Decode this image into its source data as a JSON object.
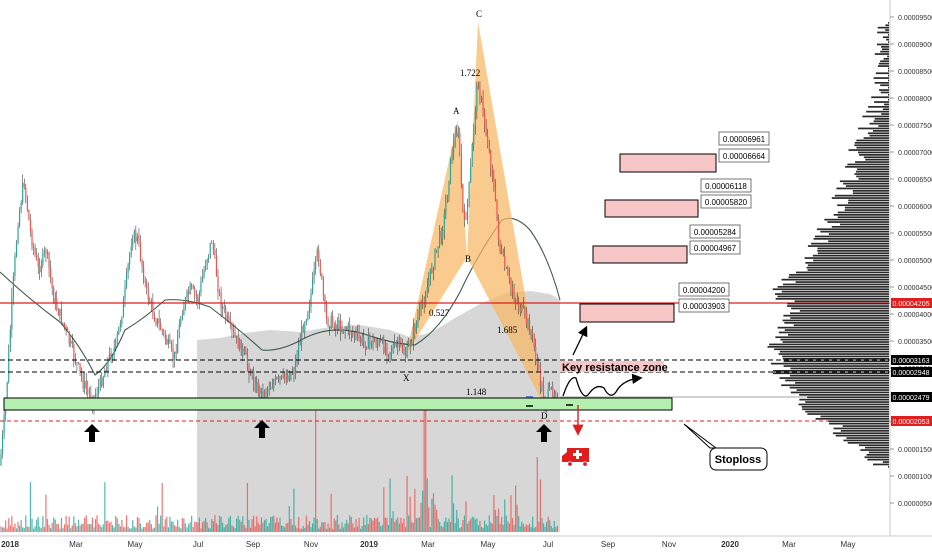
{
  "chart_data": {
    "type": "candlestick",
    "xlabels": [
      "2018",
      "Mar",
      "May",
      "Jul",
      "Sep",
      "Nov",
      "2019",
      "Mar",
      "May",
      "Jul",
      "Sep",
      "Nov",
      "2020",
      "Mar",
      "May"
    ],
    "ylabels": [
      "0.00009500",
      "0.00009000",
      "0.00008500",
      "0.00008000",
      "0.00007500",
      "0.00007000",
      "0.00006500",
      "0.00006000",
      "0.00005500",
      "0.00005000",
      "0.00004500",
      "0.00004000",
      "0.00003500",
      "0.00003000",
      "0.00002500",
      "0.00002000",
      "0.00001500",
      "0.00001000",
      "0.00000500"
    ],
    "ylim": [
      2e-07,
      9.695e-05
    ],
    "price_tags": [
      {
        "value": "0.00004205",
        "level": 4.205e-05,
        "color": "#e01e1e"
      },
      {
        "value": "0.00003163",
        "level": 3.163e-05,
        "color": "#000000"
      },
      {
        "value": "0.00002948",
        "level": 2.948e-05,
        "color": "#000000"
      },
      {
        "value": "0.00002479",
        "level": 2.479e-05,
        "color": "#000000"
      },
      {
        "value": "0.00002053",
        "level": 2.053e-05,
        "color": "#e01e1e"
      }
    ],
    "targets": [
      {
        "high": "0.00006961",
        "low": "0.00006664"
      },
      {
        "high": "0.00006118",
        "low": "0.00005820"
      },
      {
        "high": "0.00005284",
        "low": "0.00004967"
      },
      {
        "high": "0.00004200",
        "low": "0.00003903"
      }
    ],
    "pattern_points": [
      {
        "label": "X",
        "x": "2019-02",
        "y": 3.1e-05
      },
      {
        "label": "A",
        "x": "2019-03",
        "y": 7.55e-05
      },
      {
        "label": "B",
        "x": "2019-04",
        "y": 5.15e-05
      },
      {
        "label": "C",
        "x": "2019-05",
        "y": 9.35e-05
      },
      {
        "label": "D",
        "x": "2019-07",
        "y": 2.48e-05
      }
    ],
    "ratios": [
      "0.527",
      "1.722",
      "1.685",
      "1.148"
    ],
    "annotations": {
      "key_resistance": "Key resistance zone",
      "stoploss": "Stoploss"
    },
    "colors": {
      "up": "#26a69a",
      "down": "#ef5350",
      "ma": "#3d5c4c",
      "support_zone": "#b5f0b0",
      "target_zone": "#f7c6c6",
      "pattern": "#f7b763",
      "resistance_line": "#e01e1e",
      "stop_line": "#e01e1e"
    }
  }
}
